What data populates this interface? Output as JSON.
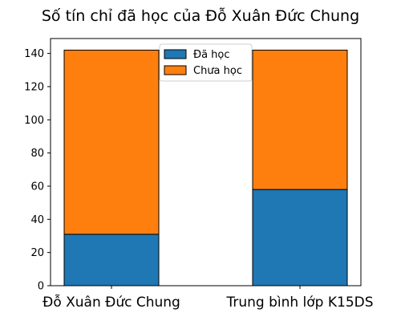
{
  "chart_data": {
    "type": "bar",
    "stacked": true,
    "title": "Số tín chỉ đã học của Đỗ Xuân Đức Chung",
    "xlabel": "",
    "ylabel": "",
    "categories": [
      "Đỗ Xuân Đức Chung",
      "Trung bình lớp K15DS"
    ],
    "series": [
      {
        "name": "Đã học",
        "values": [
          31,
          58
        ],
        "color": "#1f77b4"
      },
      {
        "name": "Chưa học",
        "values": [
          111,
          84
        ],
        "color": "#ff7f0e"
      }
    ],
    "ylim": [
      0,
      149
    ],
    "yticks": [
      "0",
      "20",
      "40",
      "60",
      "80",
      "100",
      "120",
      "140"
    ],
    "grid": false,
    "legend_position": "top-center"
  }
}
